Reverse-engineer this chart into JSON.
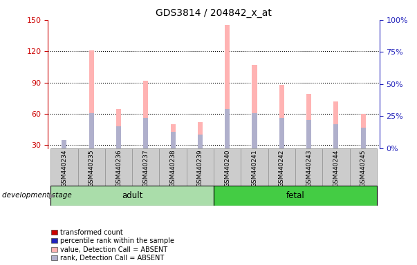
{
  "title": "GDS3814 / 204842_x_at",
  "samples": [
    "GSM440234",
    "GSM440235",
    "GSM440236",
    "GSM440237",
    "GSM440238",
    "GSM440239",
    "GSM440240",
    "GSM440241",
    "GSM440242",
    "GSM440243",
    "GSM440244",
    "GSM440245"
  ],
  "pink_bars": [
    30,
    121,
    65,
    92,
    50,
    52,
    145,
    107,
    88,
    79,
    72,
    60
  ],
  "blue_bars": [
    35,
    61,
    48,
    56,
    43,
    40,
    65,
    61,
    56,
    54,
    50,
    47
  ],
  "ylim_left": [
    27,
    150
  ],
  "yticks_left": [
    30,
    60,
    90,
    120,
    150
  ],
  "ylim_right": [
    0,
    100
  ],
  "yticks_right": [
    0,
    25,
    50,
    75,
    100
  ],
  "ytick_labels_right": [
    "0%",
    "25%",
    "50%",
    "75%",
    "100%"
  ],
  "left_axis_color": "#cc0000",
  "right_axis_color": "#2222bb",
  "pink_bar_color": "#ffb3b3",
  "blue_bar_color": "#b0b0cc",
  "adult_color": "#aaddaa",
  "fetal_color": "#44cc44",
  "n_adult": 6,
  "n_fetal": 6,
  "bar_width": 0.18,
  "legend_labels": [
    "transformed count",
    "percentile rank within the sample",
    "value, Detection Call = ABSENT",
    "rank, Detection Call = ABSENT"
  ],
  "legend_colors": [
    "#cc0000",
    "#2222bb",
    "#ffb3b3",
    "#b0b0cc"
  ],
  "sample_box_color": "#cccccc",
  "sample_box_edge": "#999999",
  "grid_color": "black",
  "dev_stage_label": "development stage"
}
